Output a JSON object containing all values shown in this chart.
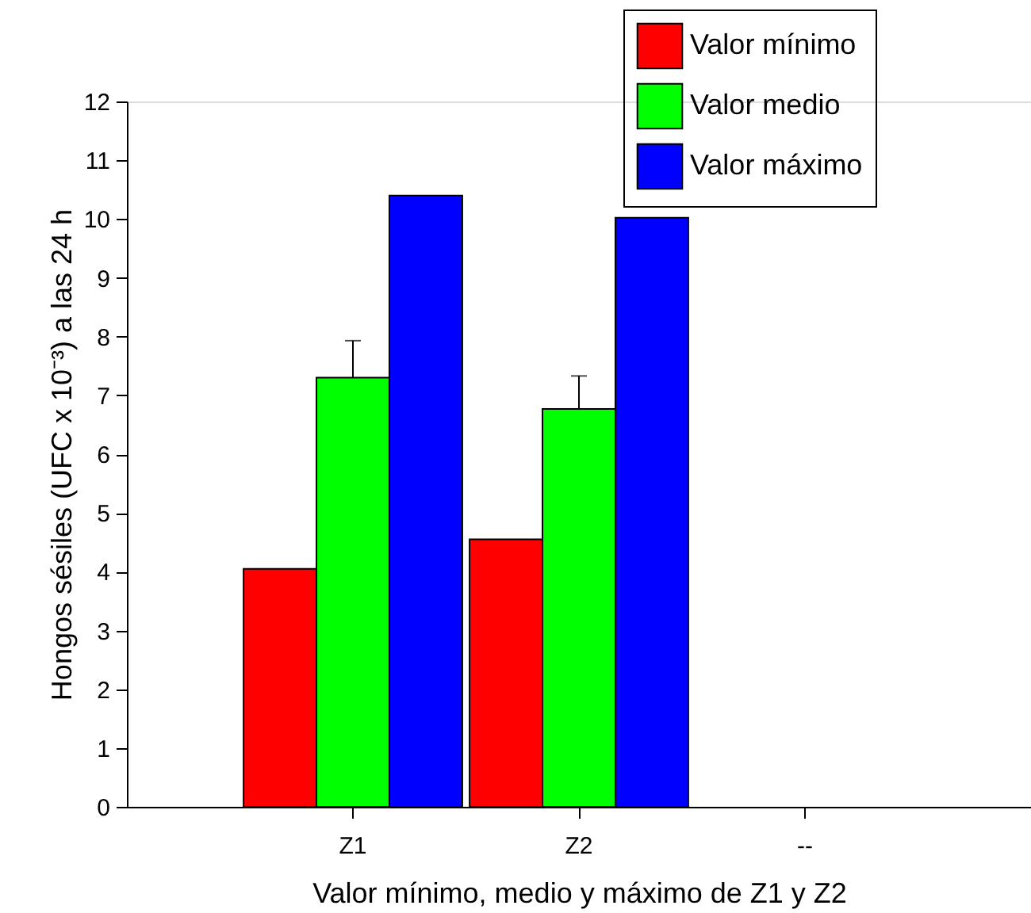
{
  "chart_data": {
    "type": "bar",
    "xlabel": "Valor mínimo, medio y máximo de Z1 y Z2",
    "ylabel": "Hongos sésiles (UFC x 10⁻³) a las 24 h",
    "categories": [
      "Z1",
      "Z2",
      "--"
    ],
    "series": [
      {
        "name": "Valor mínimo",
        "color": "#ff0000",
        "values": [
          4.05,
          4.55,
          null
        ]
      },
      {
        "name": "Valor medio",
        "color": "#00ff00",
        "values": [
          7.3,
          6.77,
          null
        ],
        "errors": [
          [
            7.3,
            7.93
          ],
          [
            6.77,
            7.33
          ],
          null
        ]
      },
      {
        "name": "Valor máximo",
        "color": "#0000ff",
        "values": [
          10.4,
          10.02,
          null
        ]
      }
    ],
    "ylim": [
      0,
      12
    ],
    "yticks": [
      0,
      1,
      2,
      3,
      4,
      5,
      6,
      7,
      8,
      9,
      10,
      11,
      12
    ],
    "grid": false,
    "legend": "top right"
  }
}
